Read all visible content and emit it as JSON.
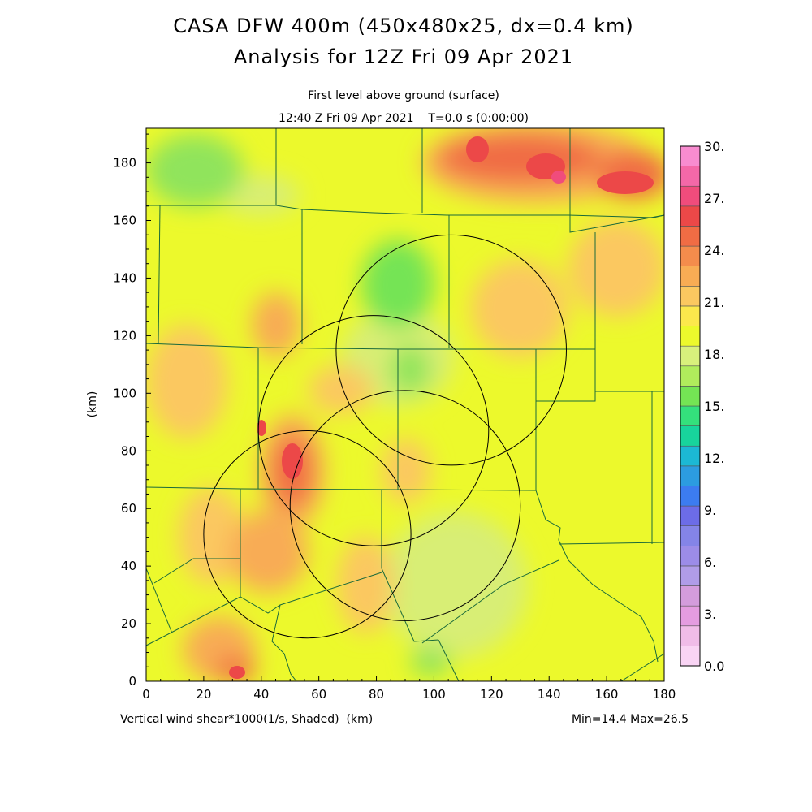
{
  "header": {
    "title_line1": "CASA DFW 400m (450x480x25, dx=0.4 km)",
    "title_line2": "Analysis for 12Z Fri 09 Apr 2021",
    "subtitle_line1": "First level above ground (surface)",
    "subtitle_line2": "12:40 Z Fri 09 Apr 2021    T=0.0 s (0:00:00)"
  },
  "footer": {
    "field_label": "Vertical wind shear*1000(1/s, Shaded)  (km)",
    "minmax": "Min=14.4 Max=26.5"
  },
  "chart_data": {
    "type": "heatmap",
    "field": "Vertical wind shear*1000 (1/s)",
    "min": 14.4,
    "max": 26.5,
    "ylabel": "(km)",
    "xlim": [
      0,
      180
    ],
    "ylim": [
      0,
      192
    ],
    "x_ticks": [
      0,
      20,
      40,
      60,
      80,
      100,
      120,
      140,
      160,
      180
    ],
    "y_ticks": [
      0,
      20,
      40,
      60,
      80,
      100,
      120,
      140,
      160,
      180
    ],
    "colorbar": {
      "levels": [
        0,
        1.5,
        3,
        4.5,
        6,
        7.5,
        9,
        10.5,
        12,
        13.5,
        15,
        16.5,
        18,
        19.5,
        21,
        22.5,
        24,
        25.5,
        27,
        28.5,
        30
      ],
      "labels": [
        "0.0",
        "3.",
        "6.",
        "9.",
        "12.",
        "15.",
        "18.",
        "21.",
        "24.",
        "27.",
        "30."
      ],
      "colors": [
        "#f9d4f4",
        "#f0bce8",
        "#e49ce0",
        "#d49cdc",
        "#b09ce8",
        "#9c8ce8",
        "#8484e8",
        "#6c6ce8",
        "#3c7cf0",
        "#2c9ce0",
        "#1cb8d4",
        "#18d49c",
        "#34e07c",
        "#74e454",
        "#b0ec5c",
        "#d8f07c",
        "#ecf92c",
        "#fce84c",
        "#fbc860",
        "#f8ac54",
        "#f48c4c",
        "#f06c44",
        "#ec4848",
        "#f04c7c",
        "#f468a8",
        "#f88cd0"
      ]
    },
    "field_features": [
      {
        "x": 8,
        "y": 180,
        "value": 16.5
      },
      {
        "x": 100,
        "y": 130,
        "value": 16.0
      },
      {
        "x": 125,
        "y": 185,
        "value": 25.5
      },
      {
        "x": 147,
        "y": 178,
        "value": 25.5
      },
      {
        "x": 52,
        "y": 76,
        "value": 25.5
      },
      {
        "x": 33,
        "y": 3,
        "value": 25.5
      },
      {
        "x": 145,
        "y": 60,
        "value": 19.5
      },
      {
        "x": 25,
        "y": 110,
        "value": 21.5
      },
      {
        "x": 100,
        "y": 40,
        "value": 18.5
      }
    ],
    "range_rings": [
      {
        "x": 56,
        "y": 51,
        "r": 36,
        "label": "radar-ring-1"
      },
      {
        "x": 79,
        "y": 87,
        "r": 40,
        "label": "radar-ring-2"
      },
      {
        "x": 90,
        "y": 61,
        "r": 40,
        "label": "radar-ring-3"
      },
      {
        "x": 106,
        "y": 115,
        "r": 40,
        "label": "radar-ring-4"
      }
    ]
  }
}
